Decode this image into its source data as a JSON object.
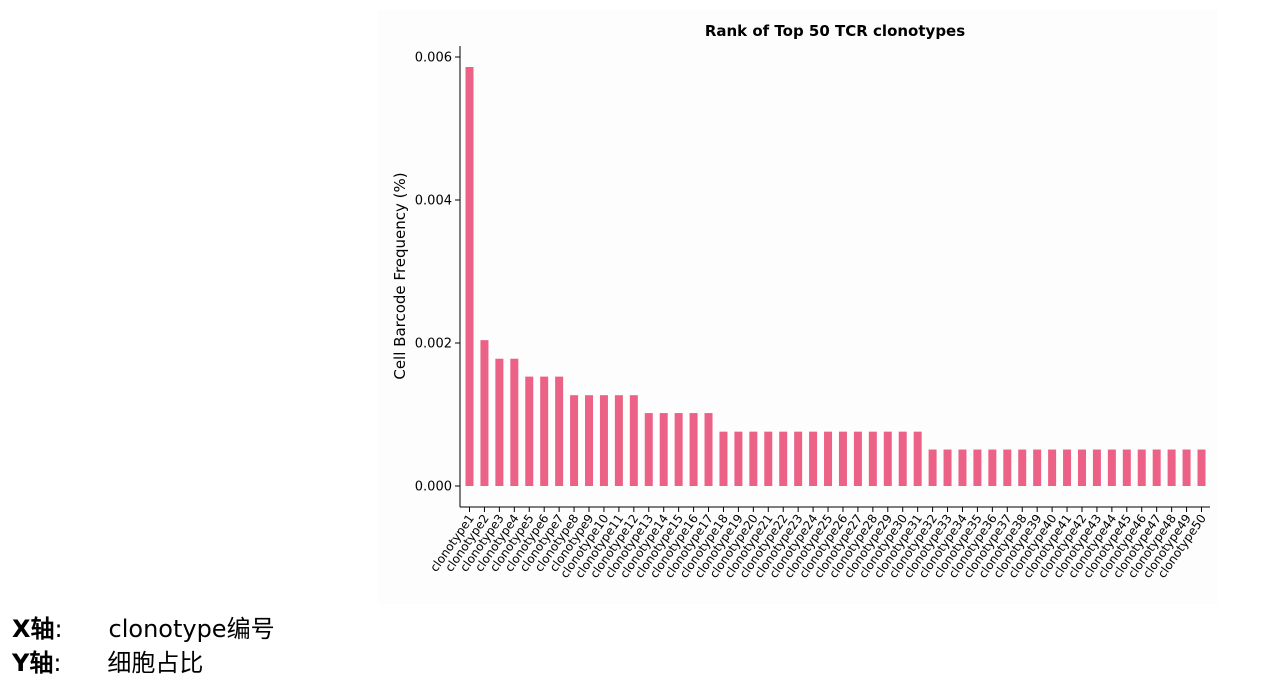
{
  "chart_data": {
    "type": "bar",
    "title": "Rank of Top 50 TCR clonotypes",
    "xlabel": "",
    "ylabel": "Cell Barcode Frequency (%)",
    "ylim": [
      0,
      0.0061
    ],
    "yticks": [
      "0.000",
      "0.002",
      "0.004",
      "0.006"
    ],
    "ytick_values": [
      0,
      0.002,
      0.004,
      0.006
    ],
    "grid": false,
    "bar_color": "#EB6286",
    "categories": [
      "clonotype1",
      "clonotype2",
      "clonotype3",
      "clonotype4",
      "clonotype5",
      "clonotype6",
      "clonotype7",
      "clonotype8",
      "clonotype9",
      "clonotype10",
      "clonotype11",
      "clonotype12",
      "clonotype13",
      "clonotype14",
      "clonotype15",
      "clonotype16",
      "clonotype17",
      "clonotype18",
      "clonotype19",
      "clonotype20",
      "clonotype21",
      "clonotype22",
      "clonotype23",
      "clonotype24",
      "clonotype25",
      "clonotype26",
      "clonotype27",
      "clonotype28",
      "clonotype29",
      "clonotype30",
      "clonotype31",
      "clonotype32",
      "clonotype33",
      "clonotype34",
      "clonotype35",
      "clonotype36",
      "clonotype37",
      "clonotype38",
      "clonotype39",
      "clonotype40",
      "clonotype41",
      "clonotype42",
      "clonotype43",
      "clonotype44",
      "clonotype45",
      "clonotype46",
      "clonotype47",
      "clonotype48",
      "clonotype49",
      "clonotype50"
    ],
    "values": [
      0.00586,
      0.00204,
      0.00178,
      0.00178,
      0.00153,
      0.00153,
      0.00153,
      0.00127,
      0.00127,
      0.00127,
      0.00127,
      0.00127,
      0.00102,
      0.00102,
      0.00102,
      0.00102,
      0.00102,
      0.00076,
      0.00076,
      0.00076,
      0.00076,
      0.00076,
      0.00076,
      0.00076,
      0.00076,
      0.00076,
      0.00076,
      0.00076,
      0.00076,
      0.00076,
      0.00076,
      0.00051,
      0.00051,
      0.00051,
      0.00051,
      0.00051,
      0.00051,
      0.00051,
      0.00051,
      0.00051,
      0.00051,
      0.00051,
      0.00051,
      0.00051,
      0.00051,
      0.00051,
      0.00051,
      0.00051,
      0.00051,
      0.00051
    ]
  },
  "notes": {
    "x_key": "X轴",
    "x_colon": ":",
    "x_value": "clonotype编号",
    "y_key": "Y轴",
    "y_colon": ":",
    "y_value": "细胞占比"
  }
}
